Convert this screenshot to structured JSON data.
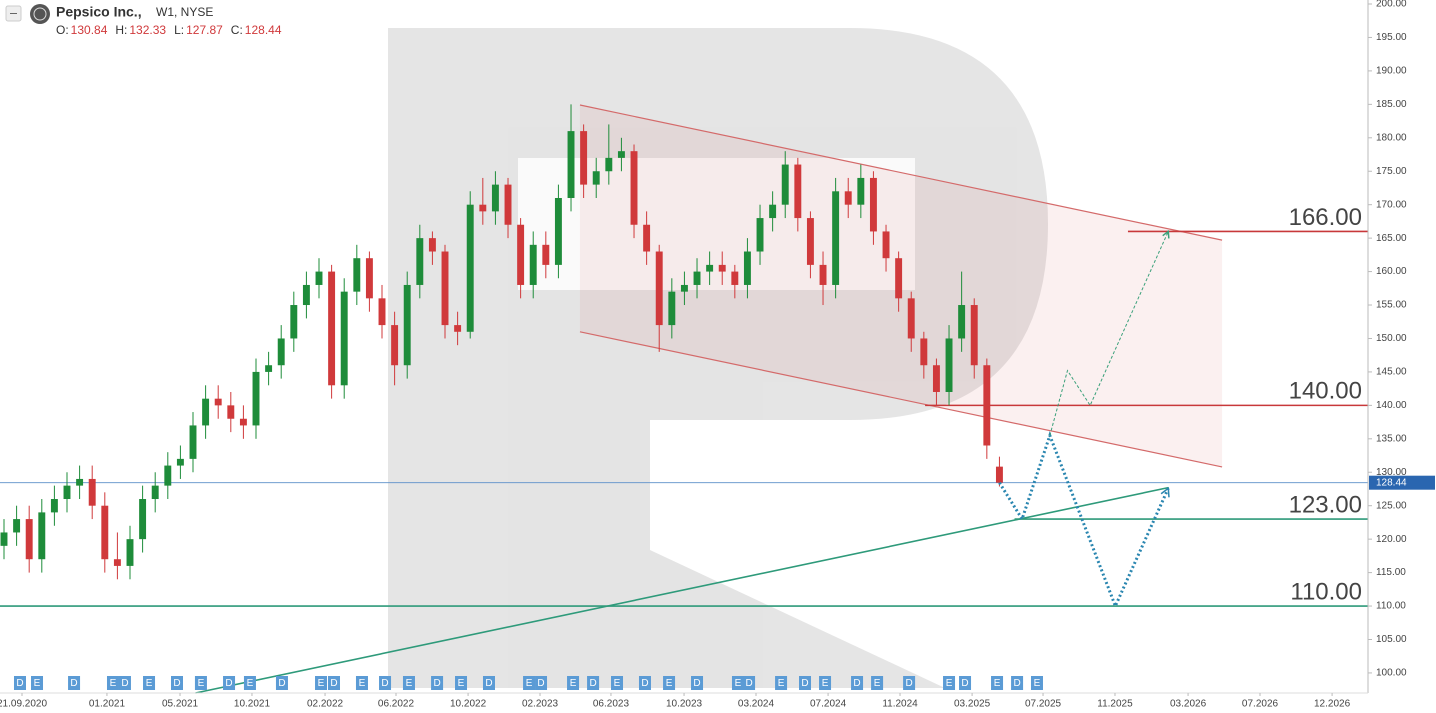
{
  "chart_data": {
    "type": "candlestick",
    "title": "Pepsico Inc.,",
    "subtitle": "W1, NYSE",
    "ohlc_labels": [
      "O:",
      "H:",
      "L:",
      "C:"
    ],
    "up_color": "#1e8c3a",
    "down_color": "#d0393b",
    "xlim": [
      -0.317,
      108.25
    ],
    "xticks": [
      {
        "value": 1.43,
        "label": "21.09.2020"
      },
      {
        "value": 8.17,
        "label": "01.2021"
      },
      {
        "value": 13.97,
        "label": "05.2021"
      },
      {
        "value": 19.68,
        "label": "10.2021"
      },
      {
        "value": 25.48,
        "label": "02.2022"
      },
      {
        "value": 31.11,
        "label": "06.2022"
      },
      {
        "value": 36.83,
        "label": "10.2022"
      },
      {
        "value": 42.54,
        "label": "02.2023"
      },
      {
        "value": 48.17,
        "label": "06.2023"
      },
      {
        "value": 53.97,
        "label": "10.2023"
      },
      {
        "value": 59.68,
        "label": "03.2024"
      },
      {
        "value": 65.4,
        "label": "07.2024"
      },
      {
        "value": 71.11,
        "label": "11.2024"
      },
      {
        "value": 76.83,
        "label": "03.2025"
      },
      {
        "value": 82.46,
        "label": "07.2025"
      },
      {
        "value": 88.17,
        "label": "11.2025"
      },
      {
        "value": 93.97,
        "label": "03.2026"
      },
      {
        "value": 99.68,
        "label": "07.2026"
      },
      {
        "value": 105.4,
        "label": "12.2026"
      }
    ],
    "ylim": [
      97.0,
      200.6
    ],
    "yticks": [
      {
        "value": 100,
        "label": "100.00"
      },
      {
        "value": 105,
        "label": "105.00"
      },
      {
        "value": 110,
        "label": "110.00"
      },
      {
        "value": 115,
        "label": "115.00"
      },
      {
        "value": 120,
        "label": "120.00"
      },
      {
        "value": 125,
        "label": "125.00"
      },
      {
        "value": 130,
        "label": "130.00"
      },
      {
        "value": 135,
        "label": "135.00"
      },
      {
        "value": 140,
        "label": "140.00"
      },
      {
        "value": 145,
        "label": "145.00"
      },
      {
        "value": 150,
        "label": "150.00"
      },
      {
        "value": 155,
        "label": "155.00"
      },
      {
        "value": 160,
        "label": "160.00"
      },
      {
        "value": 165,
        "label": "165.00"
      },
      {
        "value": 170,
        "label": "170.00"
      },
      {
        "value": 175,
        "label": "175.00"
      },
      {
        "value": 180,
        "label": "180.00"
      },
      {
        "value": 185,
        "label": "185.00"
      },
      {
        "value": 190,
        "label": "190.00"
      },
      {
        "value": 195,
        "label": "195.00"
      },
      {
        "value": 200,
        "label": "200.00"
      }
    ],
    "candles": [
      [
        119,
        123,
        117,
        121
      ],
      [
        121,
        125,
        119,
        123
      ],
      [
        123,
        125,
        115,
        117
      ],
      [
        117,
        126,
        115,
        124
      ],
      [
        124,
        128,
        122,
        126
      ],
      [
        126,
        130,
        124,
        128
      ],
      [
        128,
        131,
        126,
        129
      ],
      [
        129,
        131,
        123,
        125
      ],
      [
        125,
        127,
        115,
        117
      ],
      [
        117,
        121,
        114,
        116
      ],
      [
        116,
        122,
        114,
        120
      ],
      [
        120,
        128,
        118,
        126
      ],
      [
        126,
        130,
        124,
        128
      ],
      [
        128,
        133,
        126,
        131
      ],
      [
        131,
        134,
        129,
        132
      ],
      [
        132,
        139,
        130,
        137
      ],
      [
        137,
        143,
        135,
        141
      ],
      [
        141,
        143,
        138,
        140
      ],
      [
        140,
        142,
        136,
        138
      ],
      [
        138,
        140,
        135,
        137
      ],
      [
        137,
        147,
        135,
        145
      ],
      [
        145,
        148,
        143,
        146
      ],
      [
        146,
        152,
        144,
        150
      ],
      [
        150,
        157,
        148,
        155
      ],
      [
        155,
        160,
        153,
        158
      ],
      [
        158,
        162,
        156,
        160
      ],
      [
        160,
        161,
        141,
        143
      ],
      [
        143,
        159,
        141,
        157
      ],
      [
        157,
        164,
        155,
        162
      ],
      [
        162,
        163,
        154,
        156
      ],
      [
        156,
        158,
        150,
        152
      ],
      [
        152,
        154,
        143,
        146
      ],
      [
        146,
        160,
        144,
        158
      ],
      [
        158,
        167,
        156,
        165
      ],
      [
        165,
        166,
        161,
        163
      ],
      [
        163,
        164,
        150,
        152
      ],
      [
        152,
        154,
        149,
        151
      ],
      [
        151,
        172,
        150,
        170
      ],
      [
        170,
        174,
        167,
        169
      ],
      [
        169,
        175,
        167,
        173
      ],
      [
        173,
        174,
        165,
        167
      ],
      [
        167,
        168,
        156,
        158
      ],
      [
        158,
        166,
        156,
        164
      ],
      [
        164,
        166,
        159,
        161
      ],
      [
        161,
        173,
        159,
        171
      ],
      [
        171,
        185,
        169,
        181
      ],
      [
        181,
        182,
        171,
        173
      ],
      [
        173,
        177,
        171,
        175
      ],
      [
        175,
        182,
        173,
        177
      ],
      [
        177,
        180,
        175,
        178
      ],
      [
        178,
        179,
        165,
        167
      ],
      [
        167,
        169,
        161,
        163
      ],
      [
        163,
        164,
        148,
        152
      ],
      [
        152,
        159,
        150,
        157
      ],
      [
        157,
        160,
        155,
        158
      ],
      [
        158,
        162,
        156,
        160
      ],
      [
        160,
        163,
        158,
        161
      ],
      [
        161,
        163,
        158,
        160
      ],
      [
        160,
        161,
        156,
        158
      ],
      [
        158,
        165,
        156,
        163
      ],
      [
        163,
        170,
        161,
        168
      ],
      [
        168,
        172,
        166,
        170
      ],
      [
        170,
        178,
        168,
        176
      ],
      [
        176,
        177,
        166,
        168
      ],
      [
        168,
        169,
        159,
        161
      ],
      [
        161,
        163,
        155,
        158
      ],
      [
        158,
        174,
        156,
        172
      ],
      [
        172,
        174,
        168,
        170
      ],
      [
        170,
        176,
        168,
        174
      ],
      [
        174,
        175,
        164,
        166
      ],
      [
        166,
        167,
        160,
        162
      ],
      [
        162,
        163,
        154,
        156
      ],
      [
        156,
        157,
        148,
        150
      ],
      [
        150,
        151,
        144,
        146
      ],
      [
        146,
        147,
        140,
        142
      ],
      [
        142,
        152,
        140,
        150
      ],
      [
        150,
        160,
        148,
        155
      ],
      [
        155,
        156,
        144,
        146
      ],
      [
        146,
        147,
        132,
        134
      ],
      [
        130.84,
        132.33,
        127.87,
        128.44
      ]
    ],
    "channel": {
      "color": "#d46a6a",
      "upper": [
        [
          45.71,
          184.9
        ],
        [
          96.67,
          164.7
        ]
      ],
      "lower": [
        [
          45.71,
          151
        ],
        [
          96.67,
          130.8
        ]
      ]
    },
    "trendline": {
      "color": "#2e9a7a",
      "points": [
        [
          15.2,
          97
        ],
        [
          92.4,
          127.7
        ]
      ]
    },
    "levels": [
      {
        "value": 166,
        "label": "166.00",
        "x_start": 89.2,
        "color": "#c8383a"
      },
      {
        "value": 140,
        "label": "140.00",
        "x_start": 73.1,
        "color": "#c8383a"
      },
      {
        "value": 123,
        "label": "123.00",
        "x_start": 80.2,
        "color": "#2e9a7a"
      },
      {
        "value": 110,
        "label": "110.00",
        "x_start": -0.317,
        "color": "#2e9a7a"
      }
    ],
    "forecast_main": {
      "color": "#2a86b0",
      "points": [
        [
          79,
          128.44
        ],
        [
          80.8,
          123
        ],
        [
          83,
          135.5
        ],
        [
          88.2,
          110
        ],
        [
          92.4,
          127.6
        ]
      ]
    },
    "forecast_alt": {
      "color": "#3aa07a",
      "points": [
        [
          83,
          135.5
        ],
        [
          84.4,
          145.2
        ],
        [
          86.2,
          140
        ],
        [
          92.4,
          166
        ]
      ]
    },
    "events": [
      {
        "x": 1.27,
        "label": "D"
      },
      {
        "x": 2.62,
        "label": "E"
      },
      {
        "x": 5.56,
        "label": "D"
      },
      {
        "x": 8.65,
        "label": "E"
      },
      {
        "x": 9.6,
        "label": "D"
      },
      {
        "x": 11.51,
        "label": "E"
      },
      {
        "x": 13.73,
        "label": "D"
      },
      {
        "x": 15.63,
        "label": "E"
      },
      {
        "x": 17.86,
        "label": "D"
      },
      {
        "x": 19.52,
        "label": "E"
      },
      {
        "x": 22.06,
        "label": "D"
      },
      {
        "x": 25.16,
        "label": "E"
      },
      {
        "x": 26.19,
        "label": "D"
      },
      {
        "x": 28.41,
        "label": "E"
      },
      {
        "x": 30.24,
        "label": "D"
      },
      {
        "x": 32.14,
        "label": "E"
      },
      {
        "x": 34.37,
        "label": "D"
      },
      {
        "x": 36.27,
        "label": "E"
      },
      {
        "x": 38.49,
        "label": "D"
      },
      {
        "x": 41.67,
        "label": "E"
      },
      {
        "x": 42.62,
        "label": "D"
      },
      {
        "x": 45.16,
        "label": "E"
      },
      {
        "x": 46.75,
        "label": "D"
      },
      {
        "x": 48.65,
        "label": "E"
      },
      {
        "x": 50.87,
        "label": "D"
      },
      {
        "x": 52.78,
        "label": "E"
      },
      {
        "x": 55,
        "label": "D"
      },
      {
        "x": 58.25,
        "label": "E"
      },
      {
        "x": 59.13,
        "label": "D"
      },
      {
        "x": 61.67,
        "label": "E"
      },
      {
        "x": 63.57,
        "label": "D"
      },
      {
        "x": 65.16,
        "label": "E"
      },
      {
        "x": 67.7,
        "label": "D"
      },
      {
        "x": 69.29,
        "label": "E"
      },
      {
        "x": 71.83,
        "label": "D"
      },
      {
        "x": 75,
        "label": "E"
      },
      {
        "x": 76.27,
        "label": "D"
      },
      {
        "x": 78.81,
        "label": "E"
      },
      {
        "x": 80.4,
        "label": "D"
      },
      {
        "x": 81.98,
        "label": "E"
      }
    ]
  }
}
